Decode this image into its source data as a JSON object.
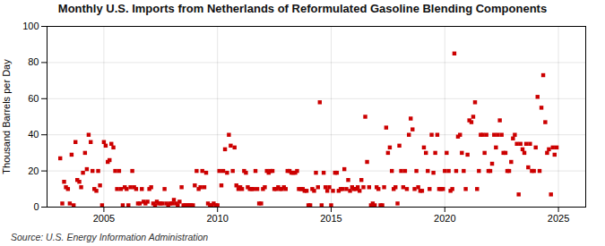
{
  "chart_data": {
    "type": "scatter",
    "title": "Monthly U.S. Imports from Netherlands of Reformulated Gasoline Blending Components",
    "ylabel": "Thousand Barrels per Day",
    "annotation": "Source: U.S. Energy Information Administration",
    "color": "#cc0000",
    "marker": "square",
    "grid": true,
    "xlim": [
      2002.5,
      2026.2
    ],
    "xticks": [
      2005,
      2010,
      2015,
      2020,
      2025
    ],
    "ylim": [
      0,
      100
    ],
    "yticks": [
      0,
      20,
      40,
      60,
      80,
      100
    ],
    "x": [
      2003.08,
      2003.17,
      2003.25,
      2003.33,
      2003.42,
      2003.5,
      2003.58,
      2003.67,
      2003.75,
      2003.83,
      2003.92,
      2004.0,
      2004.08,
      2004.17,
      2004.25,
      2004.33,
      2004.42,
      2004.5,
      2004.58,
      2004.67,
      2004.75,
      2004.83,
      2004.92,
      2005.0,
      2005.08,
      2005.17,
      2005.25,
      2005.33,
      2005.42,
      2005.5,
      2005.58,
      2005.67,
      2005.75,
      2005.83,
      2005.92,
      2006.0,
      2006.08,
      2006.17,
      2006.25,
      2006.33,
      2006.42,
      2006.5,
      2006.58,
      2006.67,
      2006.75,
      2006.83,
      2006.92,
      2007.0,
      2007.08,
      2007.17,
      2007.25,
      2007.33,
      2007.42,
      2007.5,
      2007.58,
      2007.67,
      2007.75,
      2007.83,
      2007.92,
      2008.0,
      2008.08,
      2008.17,
      2008.25,
      2008.33,
      2008.42,
      2008.5,
      2008.58,
      2008.67,
      2008.75,
      2008.83,
      2008.92,
      2009.0,
      2009.08,
      2009.17,
      2009.25,
      2009.33,
      2009.42,
      2009.5,
      2009.58,
      2009.67,
      2009.75,
      2009.83,
      2009.92,
      2010.0,
      2010.08,
      2010.17,
      2010.25,
      2010.33,
      2010.42,
      2010.5,
      2010.58,
      2010.67,
      2010.75,
      2010.83,
      2010.92,
      2011.0,
      2011.08,
      2011.17,
      2011.25,
      2011.33,
      2011.42,
      2011.5,
      2011.58,
      2011.67,
      2011.75,
      2011.83,
      2011.92,
      2012.0,
      2012.08,
      2012.17,
      2012.25,
      2012.33,
      2012.42,
      2012.5,
      2012.58,
      2012.67,
      2012.75,
      2012.83,
      2012.92,
      2013.0,
      2013.08,
      2013.17,
      2013.25,
      2013.33,
      2013.42,
      2013.5,
      2013.58,
      2013.67,
      2013.75,
      2013.83,
      2013.92,
      2014.0,
      2014.08,
      2014.17,
      2014.25,
      2014.33,
      2014.42,
      2014.5,
      2014.58,
      2014.67,
      2014.75,
      2014.83,
      2014.92,
      2015.0,
      2015.08,
      2015.17,
      2015.25,
      2015.33,
      2015.42,
      2015.5,
      2015.58,
      2015.67,
      2015.75,
      2015.83,
      2015.92,
      2016.0,
      2016.08,
      2016.17,
      2016.25,
      2016.33,
      2016.42,
      2016.5,
      2016.58,
      2016.67,
      2016.75,
      2016.83,
      2016.92,
      2017.0,
      2017.08,
      2017.17,
      2017.25,
      2017.33,
      2017.42,
      2017.5,
      2017.58,
      2017.67,
      2017.75,
      2017.83,
      2017.92,
      2018.0,
      2018.08,
      2018.17,
      2018.25,
      2018.33,
      2018.42,
      2018.5,
      2018.58,
      2018.67,
      2018.75,
      2018.83,
      2018.92,
      2019.0,
      2019.08,
      2019.17,
      2019.25,
      2019.33,
      2019.42,
      2019.5,
      2019.58,
      2019.67,
      2019.75,
      2019.83,
      2019.92,
      2020.0,
      2020.08,
      2020.17,
      2020.25,
      2020.33,
      2020.42,
      2020.5,
      2020.58,
      2020.67,
      2020.75,
      2020.83,
      2020.92,
      2021.0,
      2021.08,
      2021.17,
      2021.25,
      2021.33,
      2021.42,
      2021.5,
      2021.58,
      2021.67,
      2021.75,
      2021.83,
      2021.92,
      2022.0,
      2022.08,
      2022.17,
      2022.25,
      2022.33,
      2022.42,
      2022.5,
      2022.58,
      2022.67,
      2022.75,
      2022.83,
      2022.92,
      2023.0,
      2023.08,
      2023.17,
      2023.25,
      2023.33,
      2023.42,
      2023.5,
      2023.58,
      2023.67,
      2023.75,
      2023.83,
      2023.92,
      2024.0,
      2024.08,
      2024.17,
      2024.25,
      2024.33,
      2024.42,
      2024.5,
      2024.58,
      2024.67,
      2024.75,
      2024.83,
      2024.92
    ],
    "values": [
      27,
      2,
      14,
      11,
      10,
      2,
      29,
      1,
      36,
      15,
      14,
      11,
      19,
      30,
      21,
      40,
      36,
      20,
      10,
      9,
      20,
      12,
      1,
      36,
      34,
      25,
      26,
      35,
      33,
      20,
      10,
      20,
      10,
      1,
      11,
      10,
      1,
      11,
      20,
      11,
      10,
      2,
      2,
      10,
      3,
      2,
      3,
      10,
      11,
      2,
      1,
      3,
      2,
      2,
      2,
      10,
      2,
      1,
      2,
      2,
      4,
      2,
      1,
      3,
      11,
      1,
      1,
      1,
      1,
      1,
      1,
      12,
      20,
      10,
      11,
      20,
      11,
      19,
      2,
      1,
      1,
      2,
      1,
      1,
      20,
      12,
      20,
      32,
      19,
      40,
      34,
      20,
      33,
      12,
      10,
      11,
      10,
      20,
      19,
      11,
      10,
      10,
      10,
      20,
      10,
      2,
      2,
      10,
      11,
      20,
      19,
      20,
      20,
      10,
      10,
      11,
      10,
      10,
      11,
      10,
      20,
      20,
      19,
      19,
      19,
      20,
      10,
      10,
      10,
      9,
      9,
      1,
      1,
      10,
      9,
      19,
      11,
      58,
      1,
      19,
      11,
      9,
      11,
      1,
      9,
      19,
      19,
      9,
      10,
      10,
      21,
      10,
      15,
      9,
      11,
      10,
      10,
      11,
      9,
      15,
      11,
      50,
      25,
      11,
      1,
      2,
      1,
      11,
      10,
      1,
      1,
      11,
      44,
      30,
      33,
      20,
      10,
      11,
      2,
      34,
      20,
      11,
      20,
      10,
      40,
      49,
      43,
      10,
      20,
      11,
      9,
      9,
      33,
      30,
      20,
      10,
      40,
      19,
      30,
      40,
      10,
      10,
      10,
      20,
      30,
      20,
      9,
      10,
      85,
      20,
      39,
      40,
      30,
      20,
      10,
      29,
      48,
      47,
      50,
      58,
      10,
      20,
      40,
      40,
      30,
      40,
      20,
      20,
      24,
      40,
      33,
      40,
      48,
      40,
      30,
      30,
      20,
      20,
      25,
      38,
      40,
      35,
      7,
      35,
      32,
      30,
      35,
      22,
      35,
      20,
      20,
      33,
      61,
      20,
      55,
      73,
      47,
      30,
      32,
      7,
      33,
      29,
      33
    ]
  }
}
